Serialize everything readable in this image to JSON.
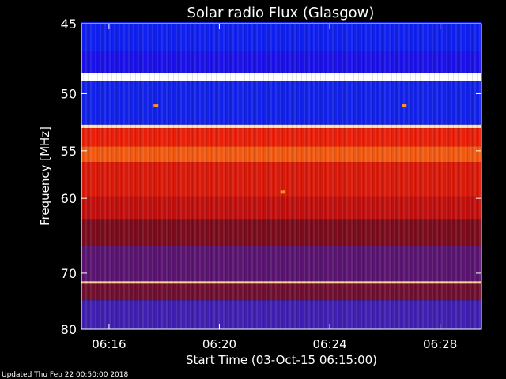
{
  "chart_data": {
    "type": "heatmap",
    "title": "Solar radio Flux (Glasgow)",
    "xlabel": "Start Time (03-Oct-15 06:15:00)",
    "ylabel": "Frequency [MHz]",
    "x_ticks": [
      "06:16",
      "06:20",
      "06:24",
      "06:28"
    ],
    "x_tick_minutes": [
      1,
      5,
      9,
      13
    ],
    "xlim_minutes": [
      0,
      14.5
    ],
    "y_ticks": [
      45,
      50,
      55,
      60,
      70,
      80
    ],
    "ylim": [
      45,
      80
    ],
    "y_scale": "log-like",
    "colormap": "blue-red-white",
    "intensity_bands": [
      {
        "freq": [
          44.9,
          46.8
        ],
        "level": "low",
        "color": "#1020ee"
      },
      {
        "freq": [
          46.8,
          48.4
        ],
        "level": "low",
        "color": "#1a12e6"
      },
      {
        "freq": [
          48.4,
          49.0
        ],
        "level": "max",
        "color": "#ffffff"
      },
      {
        "freq": [
          49.0,
          52.6
        ],
        "level": "low",
        "color": "#1222e8"
      },
      {
        "freq": [
          52.6,
          52.9
        ],
        "level": "max",
        "color": "#ffe0b0"
      },
      {
        "freq": [
          52.9,
          54.6
        ],
        "level": "medium-high",
        "color": "#e8200a"
      },
      {
        "freq": [
          54.6,
          56.1
        ],
        "level": "high",
        "color": "#f05a10"
      },
      {
        "freq": [
          56.1,
          59.8
        ],
        "level": "medium-high",
        "color": "#d81a0a"
      },
      {
        "freq": [
          59.8,
          62.5
        ],
        "level": "medium",
        "color": "#c0100e"
      },
      {
        "freq": [
          62.5,
          66.0
        ],
        "level": "medium",
        "color": "#7a0c1e"
      },
      {
        "freq": [
          66.0,
          71.3
        ],
        "level": "medium-low",
        "color": "#5a1570"
      },
      {
        "freq": [
          71.3,
          71.7
        ],
        "level": "max",
        "color": "#ffd090"
      },
      {
        "freq": [
          71.7,
          74.5
        ],
        "level": "medium-low",
        "color": "#701030"
      },
      {
        "freq": [
          74.5,
          80.0
        ],
        "level": "low",
        "color": "#4020b0"
      }
    ],
    "features": [
      {
        "freq": 51.0,
        "minute": 2.7,
        "label": "spot"
      },
      {
        "freq": 51.0,
        "minute": 11.7,
        "label": "spot"
      },
      {
        "freq": 59.3,
        "minute": 7.3,
        "label": "spot"
      }
    ],
    "grid": false,
    "legend": "none"
  },
  "footer": {
    "updated": "Updated Thu Feb 22 00:50:00 2018"
  }
}
